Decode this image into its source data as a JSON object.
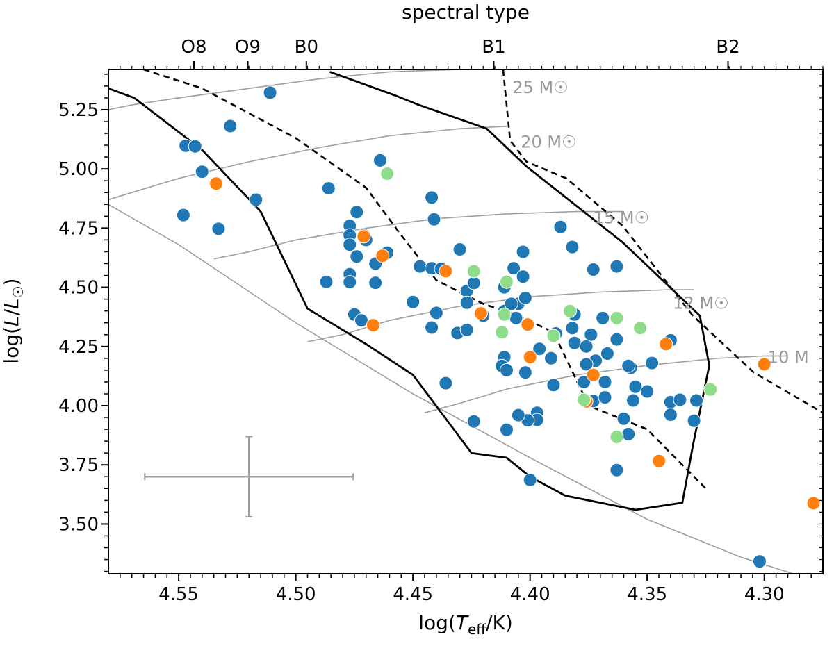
{
  "chart_data": {
    "type": "scatter",
    "title": "",
    "xlabel": "log(T_eff/K)",
    "ylabel": "log(L/L☉)",
    "top_axis_label": "spectral type",
    "xlim": [
      4.58,
      4.275
    ],
    "ylim": [
      3.29,
      5.42
    ],
    "x_ticks": [
      4.55,
      4.5,
      4.45,
      4.4,
      4.35,
      4.3
    ],
    "x_tick_labels": [
      "4.55",
      "4.50",
      "4.45",
      "4.40",
      "4.35",
      "4.30"
    ],
    "y_ticks": [
      3.5,
      3.75,
      4.0,
      4.25,
      4.5,
      4.75,
      5.0,
      5.25
    ],
    "y_tick_labels": [
      "3.50",
      "3.75",
      "4.00",
      "4.25",
      "4.50",
      "4.75",
      "5.00",
      "5.25"
    ],
    "spectral_ticks": [
      {
        "label": "O8",
        "x": 4.5435
      },
      {
        "label": "O9",
        "x": 4.5205
      },
      {
        "label": "B0",
        "x": 4.4955
      },
      {
        "label": "B1",
        "x": 4.4155
      },
      {
        "label": "B2",
        "x": 4.3155
      }
    ],
    "colors": {
      "blue": "#1f77b4",
      "orange": "#ff7f0e",
      "green": "#8fdc8a",
      "track": "#9e9e9e",
      "frame": "#000000"
    },
    "tracks": [
      {
        "label": "25 M☉",
        "mass": 25,
        "label_x": 4.4075,
        "label_y": 5.32,
        "x": [
          4.58,
          4.57,
          4.55,
          4.52,
          4.49,
          4.46,
          4.43,
          4.42
        ],
        "y": [
          5.25,
          5.27,
          5.3,
          5.34,
          5.38,
          5.41,
          5.42,
          5.42
        ]
      },
      {
        "label": "20 M☉",
        "mass": 20,
        "label_x": 4.404,
        "label_y": 5.09,
        "x": [
          4.58,
          4.57,
          4.55,
          4.52,
          4.49,
          4.46,
          4.43,
          4.41
        ],
        "y": [
          4.87,
          4.9,
          4.96,
          5.03,
          5.09,
          5.14,
          5.17,
          5.18
        ]
      },
      {
        "label": "15 M☉",
        "mass": 15,
        "label_x": 4.373,
        "label_y": 4.77,
        "x": [
          4.535,
          4.52,
          4.5,
          4.47,
          4.44,
          4.41,
          4.38,
          4.36
        ],
        "y": [
          4.62,
          4.65,
          4.7,
          4.75,
          4.79,
          4.81,
          4.82,
          4.82
        ]
      },
      {
        "label": "12 M☉",
        "mass": 12,
        "label_x": 4.339,
        "label_y": 4.41,
        "x": [
          4.495,
          4.48,
          4.46,
          4.43,
          4.4,
          4.37,
          4.34,
          4.33
        ],
        "y": [
          4.27,
          4.3,
          4.36,
          4.42,
          4.46,
          4.48,
          4.49,
          4.49
        ]
      },
      {
        "label": "10 M",
        "mass": 10,
        "label_x": 4.2985,
        "label_y": 4.18,
        "x": [
          4.445,
          4.43,
          4.41,
          4.38,
          4.35,
          4.32,
          4.3,
          4.29
        ],
        "y": [
          3.97,
          4.01,
          4.07,
          4.13,
          4.17,
          4.2,
          4.21,
          4.21
        ]
      }
    ],
    "zams": {
      "x": [
        4.58,
        4.55,
        4.5,
        4.45,
        4.4,
        4.35,
        4.31,
        4.275
      ],
      "y": [
        4.85,
        4.68,
        4.35,
        4.05,
        3.78,
        3.52,
        3.36,
        3.25
      ]
    },
    "instability_strip_solid": {
      "x": [
        4.58,
        4.569,
        4.54,
        4.515,
        4.495,
        4.47,
        4.45,
        4.425,
        4.41,
        4.4,
        4.385,
        4.355,
        4.335,
        4.3305,
        4.3235,
        4.3275,
        4.3605,
        4.4015,
        4.4185,
        4.4475,
        4.4575,
        4.4855
      ],
      "y": [
        5.34,
        5.3,
        5.08,
        4.82,
        4.41,
        4.26,
        4.13,
        3.8,
        3.78,
        3.7,
        3.62,
        3.56,
        3.59,
        3.83,
        4.17,
        4.38,
        4.69,
        5.01,
        5.17,
        5.27,
        5.31,
        5.41
      ]
    },
    "instability_strip_dashed_left": {
      "x": [
        4.565,
        4.54,
        4.5,
        4.47,
        4.455,
        4.44,
        4.42,
        4.405,
        4.39,
        4.375,
        4.35,
        4.34,
        4.325
      ],
      "y": [
        5.42,
        5.34,
        5.13,
        4.92,
        4.72,
        4.53,
        4.43,
        4.38,
        4.31,
        4.0,
        3.9,
        3.8,
        3.65
      ]
    },
    "instability_strip_dashed_right": {
      "x": [
        4.4115,
        4.4085,
        4.4015,
        4.3845,
        4.3605,
        4.3305,
        4.3045,
        4.275
      ],
      "y": [
        5.42,
        5.12,
        5.03,
        4.96,
        4.76,
        4.38,
        4.14,
        3.97
      ]
    },
    "error_bar": {
      "center_x": 4.52,
      "center_y": 3.7,
      "x_err": 0.0445,
      "y_err": 0.1695
    },
    "series": [
      {
        "name": "blue",
        "color": "#1f77b4",
        "points": [
          [
            4.511,
            5.322
          ],
          [
            4.528,
            5.181
          ],
          [
            4.547,
            5.098
          ],
          [
            4.543,
            5.095
          ],
          [
            4.54,
            4.988
          ],
          [
            4.517,
            4.87
          ],
          [
            4.548,
            4.805
          ],
          [
            4.533,
            4.747
          ],
          [
            4.486,
            4.918
          ],
          [
            4.464,
            5.036
          ],
          [
            4.442,
            4.879
          ],
          [
            4.441,
            4.787
          ],
          [
            4.474,
            4.818
          ],
          [
            4.477,
            4.76
          ],
          [
            4.477,
            4.72
          ],
          [
            4.471,
            4.72
          ],
          [
            4.477,
            4.68
          ],
          [
            4.474,
            4.63
          ],
          [
            4.47,
            4.7
          ],
          [
            4.466,
            4.6
          ],
          [
            4.461,
            4.646
          ],
          [
            4.477,
            4.555
          ],
          [
            4.477,
            4.522
          ],
          [
            4.466,
            4.519
          ],
          [
            4.487,
            4.523
          ],
          [
            4.447,
            4.588
          ],
          [
            4.442,
            4.58
          ],
          [
            4.43,
            4.66
          ],
          [
            4.438,
            4.578
          ],
          [
            4.427,
            4.485
          ],
          [
            4.424,
            4.518
          ],
          [
            4.427,
            4.435
          ],
          [
            4.45,
            4.438
          ],
          [
            4.44,
            4.392
          ],
          [
            4.442,
            4.33
          ],
          [
            4.431,
            4.307
          ],
          [
            4.427,
            4.32
          ],
          [
            4.475,
            4.385
          ],
          [
            4.472,
            4.36
          ],
          [
            4.42,
            4.38
          ],
          [
            4.407,
            4.58
          ],
          [
            4.403,
            4.65
          ],
          [
            4.403,
            4.545
          ],
          [
            4.405,
            4.43
          ],
          [
            4.402,
            4.455
          ],
          [
            4.411,
            4.5
          ],
          [
            4.411,
            4.4
          ],
          [
            4.408,
            4.43
          ],
          [
            4.406,
            4.37
          ],
          [
            4.387,
            4.755
          ],
          [
            4.382,
            4.67
          ],
          [
            4.373,
            4.575
          ],
          [
            4.363,
            4.588
          ],
          [
            4.381,
            4.385
          ],
          [
            4.382,
            4.328
          ],
          [
            4.39,
            4.3
          ],
          [
            4.389,
            4.305
          ],
          [
            4.381,
            4.265
          ],
          [
            4.374,
            4.3
          ],
          [
            4.376,
            4.25
          ],
          [
            4.369,
            4.37
          ],
          [
            4.367,
            4.22
          ],
          [
            4.363,
            4.28
          ],
          [
            4.372,
            4.19
          ],
          [
            4.376,
            4.175
          ],
          [
            4.377,
            4.1
          ],
          [
            4.368,
            4.1
          ],
          [
            4.373,
            4.02
          ],
          [
            4.368,
            4.035
          ],
          [
            4.357,
            4.16
          ],
          [
            4.355,
            4.08
          ],
          [
            4.356,
            4.022
          ],
          [
            4.358,
            4.168
          ],
          [
            4.35,
            4.06
          ],
          [
            4.348,
            4.18
          ],
          [
            4.34,
            4.276
          ],
          [
            4.34,
            4.015
          ],
          [
            4.336,
            4.025
          ],
          [
            4.34,
            3.962
          ],
          [
            4.329,
            4.022
          ],
          [
            4.33,
            3.936
          ],
          [
            4.36,
            3.945
          ],
          [
            4.358,
            3.88
          ],
          [
            4.363,
            3.728
          ],
          [
            4.4,
            3.686
          ],
          [
            4.396,
            4.24
          ],
          [
            4.391,
            4.2
          ],
          [
            4.39,
            4.087
          ],
          [
            4.397,
            3.97
          ],
          [
            4.397,
            3.94
          ],
          [
            4.402,
            4.14
          ],
          [
            4.401,
            3.938
          ],
          [
            4.405,
            3.96
          ],
          [
            4.411,
            4.205
          ],
          [
            4.412,
            4.168
          ],
          [
            4.41,
            4.15
          ],
          [
            4.41,
            3.898
          ],
          [
            4.424,
            3.933
          ],
          [
            4.436,
            4.095
          ],
          [
            4.302,
            3.342
          ]
        ]
      },
      {
        "name": "orange",
        "color": "#ff7f0e",
        "points": [
          [
            4.534,
            4.938
          ],
          [
            4.471,
            4.715
          ],
          [
            4.463,
            4.633
          ],
          [
            4.436,
            4.568
          ],
          [
            4.467,
            4.34
          ],
          [
            4.421,
            4.39
          ],
          [
            4.401,
            4.343
          ],
          [
            4.4,
            4.205
          ],
          [
            4.373,
            4.13
          ],
          [
            4.376,
            4.018
          ],
          [
            4.342,
            4.26
          ],
          [
            4.345,
            3.766
          ],
          [
            4.3,
            4.175
          ],
          [
            4.279,
            3.588
          ]
        ]
      },
      {
        "name": "green",
        "color": "#8fdc8a",
        "points": [
          [
            4.461,
            4.98
          ],
          [
            4.424,
            4.568
          ],
          [
            4.41,
            4.523
          ],
          [
            4.411,
            4.385
          ],
          [
            4.412,
            4.31
          ],
          [
            4.383,
            4.4
          ],
          [
            4.39,
            4.295
          ],
          [
            4.363,
            4.37
          ],
          [
            4.353,
            4.328
          ],
          [
            4.377,
            4.025
          ],
          [
            4.363,
            3.868
          ],
          [
            4.323,
            4.068
          ]
        ]
      }
    ]
  }
}
